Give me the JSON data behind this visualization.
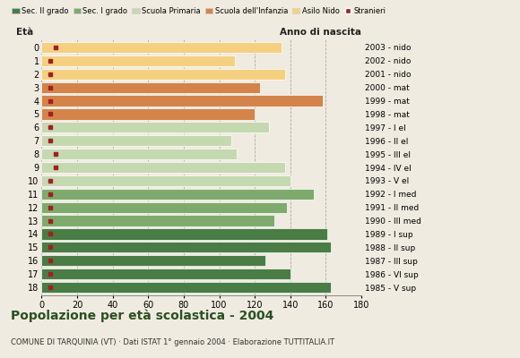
{
  "ages": [
    18,
    17,
    16,
    15,
    14,
    13,
    12,
    11,
    10,
    9,
    8,
    7,
    6,
    5,
    4,
    3,
    2,
    1,
    0
  ],
  "years": [
    "1985 - V sup",
    "1986 - VI sup",
    "1987 - III sup",
    "1988 - II sup",
    "1989 - I sup",
    "1990 - III med",
    "1991 - II med",
    "1992 - I med",
    "1993 - V el",
    "1994 - IV el",
    "1995 - III el",
    "1996 - II el",
    "1997 - I el",
    "1998 - mat",
    "1999 - mat",
    "2000 - mat",
    "2001 - nido",
    "2002 - nido",
    "2003 - nido"
  ],
  "values": [
    163,
    140,
    126,
    163,
    161,
    131,
    138,
    153,
    140,
    137,
    110,
    107,
    128,
    120,
    158,
    123,
    137,
    109,
    135
  ],
  "stranieri": [
    5,
    5,
    5,
    5,
    5,
    5,
    5,
    5,
    5,
    8,
    8,
    5,
    5,
    5,
    5,
    5,
    5,
    5,
    8
  ],
  "colors": {
    "sec2": "#4a7c45",
    "sec1": "#7faa6e",
    "primaria": "#c5d9b0",
    "infanzia": "#d4844a",
    "nido": "#f5d080",
    "stranieri": "#a02020"
  },
  "category_colors": [
    "#4a7c45",
    "#4a7c45",
    "#4a7c45",
    "#4a7c45",
    "#4a7c45",
    "#7faa6e",
    "#7faa6e",
    "#7faa6e",
    "#c5d9b0",
    "#c5d9b0",
    "#c5d9b0",
    "#c5d9b0",
    "#c5d9b0",
    "#d4844a",
    "#d4844a",
    "#d4844a",
    "#f5d080",
    "#f5d080",
    "#f5d080"
  ],
  "legend_labels": [
    "Sec. II grado",
    "Sec. I grado",
    "Scuola Primaria",
    "Scuola dell'Infanzia",
    "Asilo Nido",
    "Stranieri"
  ],
  "legend_colors": [
    "#4a7c45",
    "#7faa6e",
    "#c5d9b0",
    "#d4844a",
    "#f5d080",
    "#a02020"
  ],
  "title": "Popolazione per età scolastica - 2004",
  "subtitle": "COMUNE DI TARQUINIA (VT) · Dati ISTAT 1° gennaio 2004 · Elaborazione TUTTITALIA.IT",
  "xlabel_left": "Età",
  "xlabel_right": "Anno di nascita",
  "xlim": [
    0,
    180
  ],
  "xticks": [
    0,
    20,
    40,
    60,
    80,
    100,
    120,
    140,
    160,
    180
  ],
  "background_color": "#f0ebe0",
  "plot_bg": "#f0ebe0"
}
